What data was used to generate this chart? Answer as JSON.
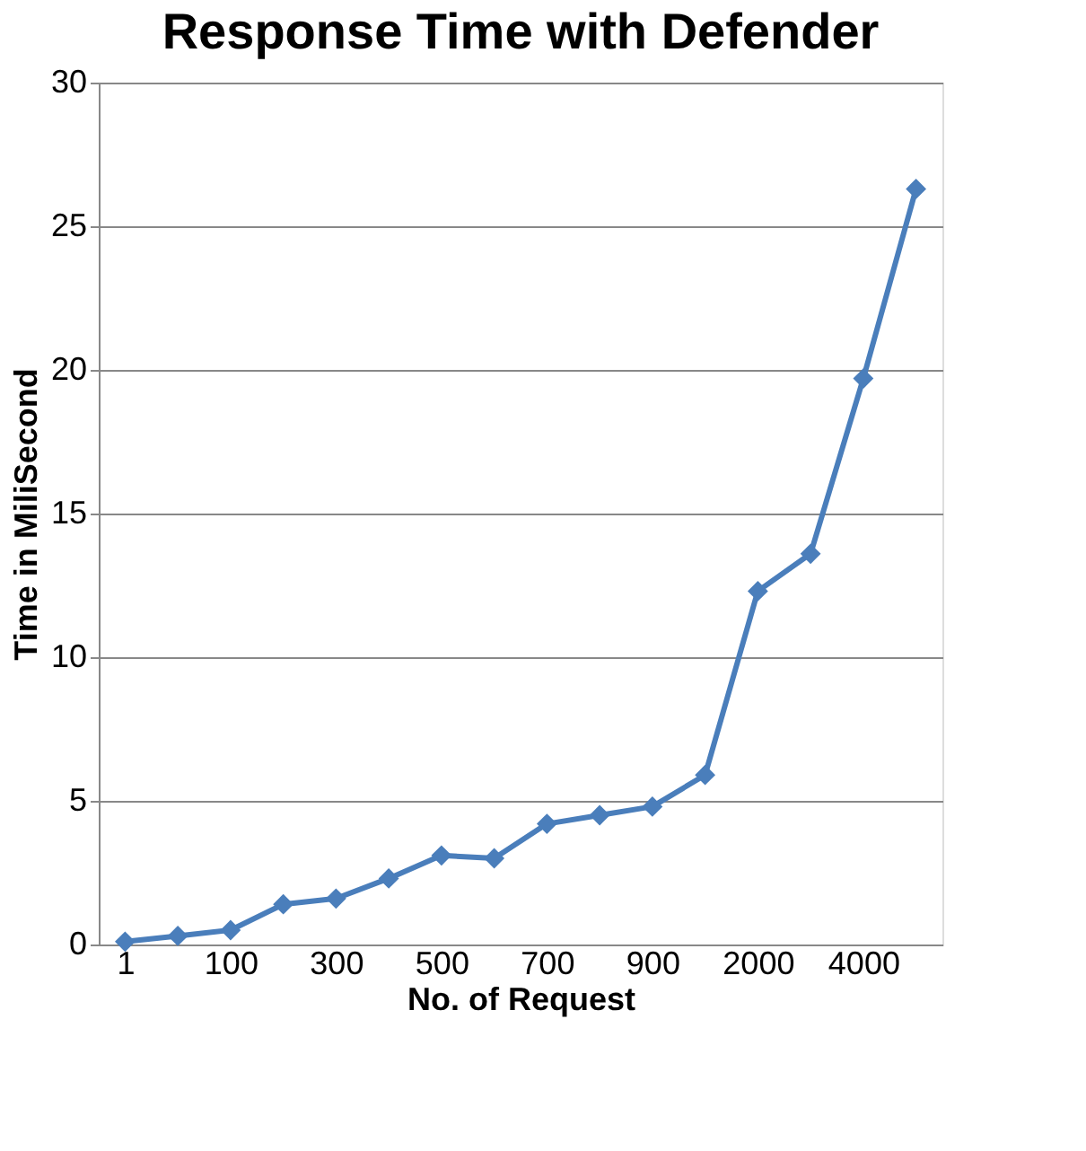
{
  "chart_data": {
    "type": "line",
    "title": "Response Time with Defender",
    "xlabel": "No. of Request",
    "ylabel": "Time in MiliSecond",
    "categories": [
      "1",
      null,
      "100",
      null,
      "300",
      null,
      "500",
      null,
      "700",
      null,
      "900",
      null,
      "2000",
      null,
      "4000",
      null
    ],
    "series": [
      {
        "color": "#4a7ebb",
        "values": [
          0.1,
          0.3,
          0.5,
          1.4,
          1.6,
          2.3,
          3.1,
          3.0,
          4.2,
          4.5,
          4.8,
          5.9,
          12.3,
          13.6,
          19.7,
          26.3
        ]
      }
    ],
    "ylim": [
      0,
      30
    ],
    "yticks": [
      0,
      5,
      10,
      15,
      20,
      25,
      30
    ],
    "grid": "y",
    "marker": "diamond",
    "line_style": "solid"
  }
}
